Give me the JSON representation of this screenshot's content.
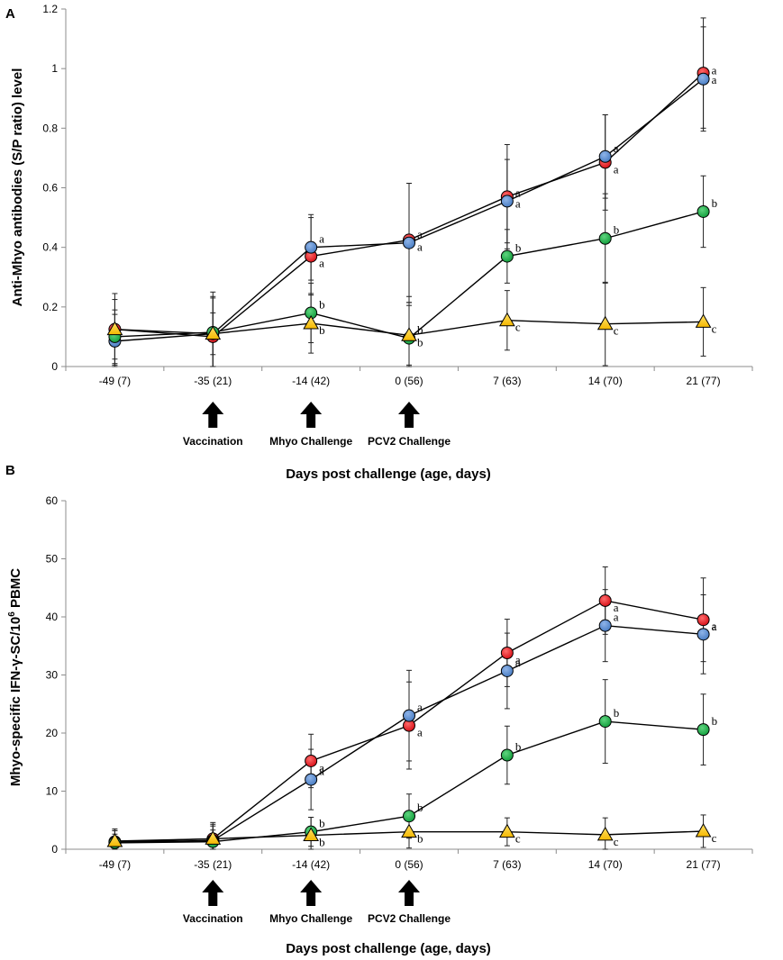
{
  "chart_data": [
    {
      "type": "line",
      "panel_label": "A",
      "ylabel": "Anti-Mhyo antibodies (S/P ratio) level",
      "xlabel": "Days post challenge (age, days)",
      "ylim": [
        0,
        1.2
      ],
      "yticks": [
        "0",
        "0.2",
        "0.4",
        "0.6",
        "0.8",
        "1",
        "1.2"
      ],
      "yticks_values": [
        0,
        0.2,
        0.4,
        0.6,
        0.8,
        1.0,
        1.2
      ],
      "categories": [
        "-49 (7)",
        "-35 (21)",
        "-14 (42)",
        "0 (56)",
        "7 (63)",
        "14 (70)",
        "21 (77)"
      ],
      "events": [
        {
          "label": "Vaccination",
          "category_index": 1
        },
        {
          "label": "Mhyo Challenge",
          "category_index": 2
        },
        {
          "label": "PCV2 Challenge",
          "category_index": 3
        }
      ],
      "series": [
        {
          "name": "red",
          "color": "#ee1c24",
          "marker": "circle",
          "values": [
            0.125,
            0.1,
            0.37,
            0.425,
            0.57,
            0.685,
            0.985
          ],
          "errors": [
            0.12,
            0.13,
            0.13,
            0.19,
            0.175,
            0.16,
            0.185
          ],
          "sig": [
            "",
            "",
            "a",
            "a",
            "a",
            "a",
            "a"
          ]
        },
        {
          "name": "blue",
          "color": "#5b8fd4",
          "marker": "circle",
          "values": [
            0.085,
            0.11,
            0.4,
            0.415,
            0.555,
            0.705,
            0.965
          ],
          "errors": [
            0.09,
            0.14,
            0.11,
            0.2,
            0.14,
            0.14,
            0.175
          ],
          "sig": [
            "",
            "",
            "a",
            "a",
            "a",
            "a",
            "a"
          ]
        },
        {
          "name": "green",
          "color": "#1db34a",
          "marker": "circle",
          "values": [
            0.1,
            0.115,
            0.18,
            0.095,
            0.37,
            0.43,
            0.52
          ],
          "errors": [
            0.09,
            0.12,
            0.1,
            0.12,
            0.09,
            0.15,
            0.12
          ],
          "sig": [
            "",
            "",
            "b",
            "b",
            "b",
            "b",
            "b"
          ]
        },
        {
          "name": "yellow",
          "color": "#ffc20e",
          "marker": "triangle",
          "values": [
            0.125,
            0.11,
            0.145,
            0.105,
            0.155,
            0.143,
            0.15
          ],
          "errors": [
            0.1,
            0.07,
            0.1,
            0.1,
            0.1,
            0.14,
            0.115
          ],
          "sig": [
            "",
            "",
            "b",
            "b",
            "c",
            "c",
            "c"
          ]
        }
      ]
    },
    {
      "type": "line",
      "panel_label": "B",
      "ylabel_prefix": "Mhyo-specific IFN-γ-SC/10",
      "ylabel_sup": "6",
      "ylabel_suffix": " PBMC",
      "xlabel": "Days post challenge (age, days)",
      "ylim": [
        0,
        60
      ],
      "yticks": [
        "0",
        "10",
        "20",
        "30",
        "40",
        "50",
        "60"
      ],
      "yticks_values": [
        0,
        10,
        20,
        30,
        40,
        50,
        60
      ],
      "categories": [
        "-49 (7)",
        "-35 (21)",
        "-14 (42)",
        "0 (56)",
        "7 (63)",
        "14 (70)",
        "21 (77)"
      ],
      "events": [
        {
          "label": "Vaccination",
          "category_index": 1
        },
        {
          "label": "Mhyo Challenge",
          "category_index": 2
        },
        {
          "label": "PCV2 Challenge",
          "category_index": 3
        }
      ],
      "series": [
        {
          "name": "red",
          "color": "#ee1c24",
          "marker": "circle",
          "values": [
            1.3,
            1.8,
            15.2,
            21.3,
            33.8,
            42.8,
            39.5
          ],
          "errors": [
            2.2,
            2.8,
            4.6,
            7.5,
            5.8,
            5.8,
            7.2
          ],
          "sig": [
            "",
            "",
            "a",
            "a",
            "a",
            "a",
            "a"
          ]
        },
        {
          "name": "blue",
          "color": "#5b8fd4",
          "marker": "circle",
          "values": [
            1.2,
            1.5,
            12.0,
            23.0,
            30.7,
            38.5,
            37.0
          ],
          "errors": [
            2.0,
            2.5,
            5.2,
            7.8,
            6.5,
            6.2,
            6.8
          ],
          "sig": [
            "",
            "",
            "a",
            "a",
            "a",
            "a",
            "a"
          ]
        },
        {
          "name": "green",
          "color": "#1db34a",
          "marker": "circle",
          "values": [
            1.1,
            1.3,
            3.0,
            5.7,
            16.2,
            22.0,
            20.6
          ],
          "errors": [
            1.5,
            2.0,
            2.5,
            3.8,
            5.0,
            7.2,
            6.1
          ],
          "sig": [
            "",
            "",
            "b",
            "b",
            "b",
            "b",
            "b"
          ]
        },
        {
          "name": "yellow",
          "color": "#ffc20e",
          "marker": "triangle",
          "values": [
            1.4,
            1.8,
            2.4,
            3.0,
            3.0,
            2.5,
            3.1
          ],
          "errors": [
            1.8,
            2.5,
            3.1,
            2.8,
            2.4,
            2.9,
            2.8
          ],
          "sig": [
            "",
            "",
            "b",
            "b",
            "c",
            "c",
            "c"
          ]
        }
      ]
    }
  ]
}
